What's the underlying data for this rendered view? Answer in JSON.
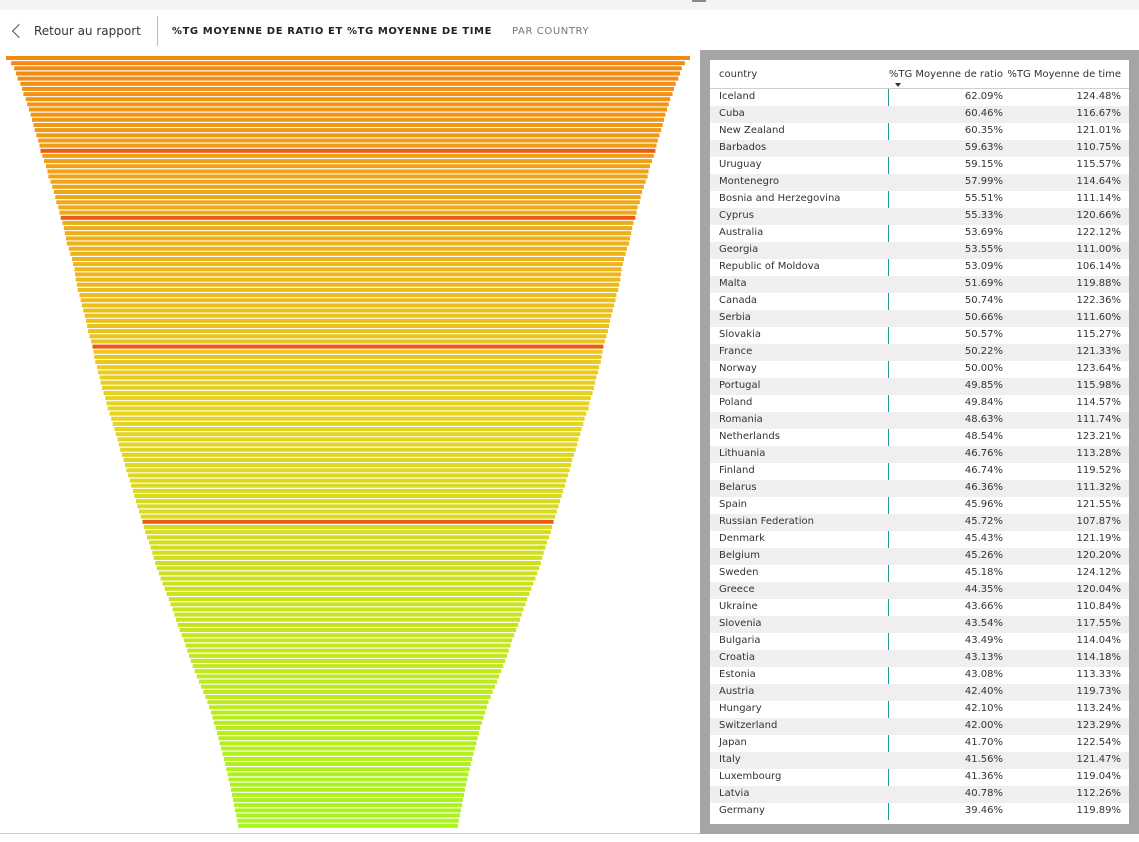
{
  "header": {
    "back_label": "Retour au rapport",
    "title": "%TG MOYENNE DE RATIO ET %TG MOYENNE DE TIME",
    "subtitle": "PAR COUNTRY"
  },
  "table": {
    "columns": [
      "country",
      "%TG Moyenne de ratio",
      "%TG Moyenne de time"
    ],
    "sort_column": "%TG Moyenne de ratio",
    "sort_direction": "descending",
    "accent_color": "#1a9e8f",
    "rows": [
      {
        "country": "Iceland",
        "ratio": "62.09%",
        "time": "124.48%"
      },
      {
        "country": "Cuba",
        "ratio": "60.46%",
        "time": "116.67%"
      },
      {
        "country": "New Zealand",
        "ratio": "60.35%",
        "time": "121.01%"
      },
      {
        "country": "Barbados",
        "ratio": "59.63%",
        "time": "110.75%"
      },
      {
        "country": "Uruguay",
        "ratio": "59.15%",
        "time": "115.57%"
      },
      {
        "country": "Montenegro",
        "ratio": "57.99%",
        "time": "114.64%"
      },
      {
        "country": "Bosnia and Herzegovina",
        "ratio": "55.51%",
        "time": "111.14%"
      },
      {
        "country": "Cyprus",
        "ratio": "55.33%",
        "time": "120.66%"
      },
      {
        "country": "Australia",
        "ratio": "53.69%",
        "time": "122.12%"
      },
      {
        "country": "Georgia",
        "ratio": "53.55%",
        "time": "111.00%"
      },
      {
        "country": "Republic of Moldova",
        "ratio": "53.09%",
        "time": "106.14%"
      },
      {
        "country": "Malta",
        "ratio": "51.69%",
        "time": "119.88%"
      },
      {
        "country": "Canada",
        "ratio": "50.74%",
        "time": "122.36%"
      },
      {
        "country": "Serbia",
        "ratio": "50.66%",
        "time": "111.60%"
      },
      {
        "country": "Slovakia",
        "ratio": "50.57%",
        "time": "115.27%"
      },
      {
        "country": "France",
        "ratio": "50.22%",
        "time": "121.33%"
      },
      {
        "country": "Norway",
        "ratio": "50.00%",
        "time": "123.64%"
      },
      {
        "country": "Portugal",
        "ratio": "49.85%",
        "time": "115.98%"
      },
      {
        "country": "Poland",
        "ratio": "49.84%",
        "time": "114.57%"
      },
      {
        "country": "Romania",
        "ratio": "48.63%",
        "time": "111.74%"
      },
      {
        "country": "Netherlands",
        "ratio": "48.54%",
        "time": "123.21%"
      },
      {
        "country": "Lithuania",
        "ratio": "46.76%",
        "time": "113.28%"
      },
      {
        "country": "Finland",
        "ratio": "46.74%",
        "time": "119.52%"
      },
      {
        "country": "Belarus",
        "ratio": "46.36%",
        "time": "111.32%"
      },
      {
        "country": "Spain",
        "ratio": "45.96%",
        "time": "121.55%"
      },
      {
        "country": "Russian Federation",
        "ratio": "45.72%",
        "time": "107.87%"
      },
      {
        "country": "Denmark",
        "ratio": "45.43%",
        "time": "121.19%"
      },
      {
        "country": "Belgium",
        "ratio": "45.26%",
        "time": "120.20%"
      },
      {
        "country": "Sweden",
        "ratio": "45.18%",
        "time": "124.12%"
      },
      {
        "country": "Greece",
        "ratio": "44.35%",
        "time": "120.04%"
      },
      {
        "country": "Ukraine",
        "ratio": "43.66%",
        "time": "110.84%"
      },
      {
        "country": "Slovenia",
        "ratio": "43.54%",
        "time": "117.55%"
      },
      {
        "country": "Bulgaria",
        "ratio": "43.49%",
        "time": "114.04%"
      },
      {
        "country": "Croatia",
        "ratio": "43.13%",
        "time": "114.18%"
      },
      {
        "country": "Estonia",
        "ratio": "43.08%",
        "time": "113.33%"
      },
      {
        "country": "Austria",
        "ratio": "42.40%",
        "time": "119.73%"
      },
      {
        "country": "Hungary",
        "ratio": "42.10%",
        "time": "113.24%"
      },
      {
        "country": "Switzerland",
        "ratio": "42.00%",
        "time": "123.29%"
      },
      {
        "country": "Japan",
        "ratio": "41.70%",
        "time": "122.54%"
      },
      {
        "country": "Italy",
        "ratio": "41.56%",
        "time": "121.47%"
      },
      {
        "country": "Luxembourg",
        "ratio": "41.36%",
        "time": "119.04%"
      },
      {
        "country": "Latvia",
        "ratio": "40.78%",
        "time": "112.26%"
      },
      {
        "country": "Germany",
        "ratio": "39.46%",
        "time": "119.89%"
      }
    ]
  },
  "chart_data": {
    "type": "funnel",
    "description": "funnel of many thin horizontal bars, widest at top, narrowing downward; color gradient orange to lime",
    "bar_count": 150,
    "values": [
      100,
      98.5,
      97.6,
      97.1,
      96.6,
      95.8,
      95.3,
      94.9,
      94.2,
      93.8,
      93.3,
      92.8,
      92.4,
      92.0,
      91.6,
      91.1,
      90.6,
      90.2,
      89.9,
      89.4,
      88.9,
      88.3,
      87.9,
      87.6,
      87.0,
      86.5,
      86.0,
      85.6,
      85.3,
      84.7,
      84.4,
      84.0,
      83.5,
      83.1,
      82.8,
      82.5,
      82.2,
      81.6,
      81.2,
      80.7,
      80.4,
      80.0,
      79.8,
      79.6,
      79.3,
      79.0,
      78.5,
      78.2,
      77.8,
      77.4,
      77.0,
      76.6,
      76.3,
      76.0,
      75.6,
      75.1,
      74.7,
      74.4,
      74.2,
      73.9,
      73.4,
      73.1,
      72.6,
      72.3,
      71.9,
      71.5,
      71.0,
      70.6,
      70.3,
      69.7,
      69.2,
      68.8,
      68.3,
      67.9,
      67.4,
      67.0,
      66.6,
      66.1,
      65.6,
      65.2,
      64.8,
      64.3,
      63.8,
      63.4,
      62.9,
      62.5,
      62.0,
      61.6,
      61.1,
      60.6,
      60.1,
      59.7,
      59.3,
      58.8,
      58.2,
      57.7,
      57.2,
      56.8,
      56.4,
      55.9,
      55.3,
      54.8,
      54.2,
      53.6,
      53.0,
      52.4,
      51.9,
      51.3,
      50.8,
      50.3,
      49.8,
      49.2,
      48.6,
      48.0,
      47.5,
      47.0,
      46.5,
      46.0,
      45.4,
      44.8,
      44.2,
      43.6,
      43.0,
      42.3,
      41.7,
      41.1,
      40.6,
      40.1,
      39.6,
      39.2,
      38.7,
      38.3,
      37.9,
      37.5,
      37.1,
      36.7,
      36.3,
      35.9,
      35.6,
      35.2,
      34.9,
      34.5,
      34.2,
      33.9,
      33.6,
      33.3,
      33.0,
      32.7,
      32.4,
      32.1
    ],
    "color_start": "#f28a14",
    "color_mid": "#e8d21e",
    "color_end": "#a8f51c",
    "highlight_color": "#ee5a10"
  }
}
